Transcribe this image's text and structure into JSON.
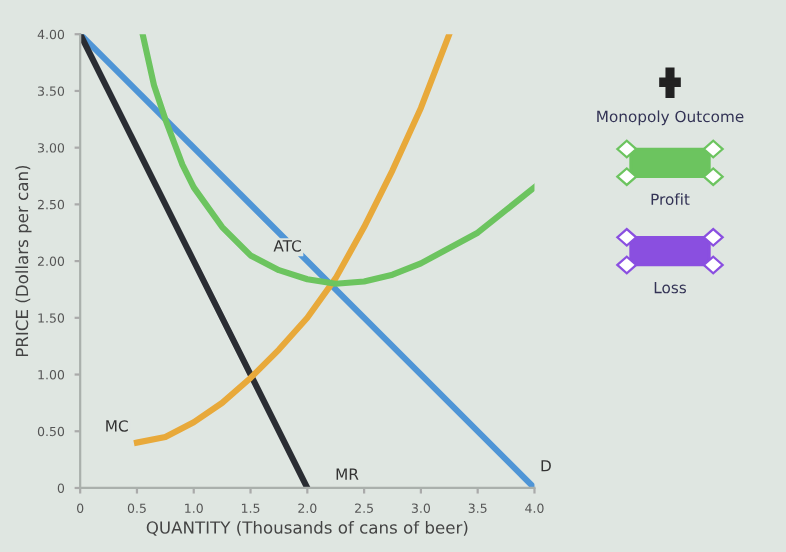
{
  "chart_data": {
    "type": "line",
    "xlabel": "QUANTITY (Thousands of cans of beer)",
    "ylabel": "PRICE (Dollars per can)",
    "xlim": [
      0,
      4
    ],
    "ylim": [
      0,
      4
    ],
    "xticks": [
      0,
      {
        "value": 0.5,
        "label": "0.5"
      },
      {
        "value": 1,
        "label": "1.0"
      },
      {
        "value": 1.5,
        "label": "1.5"
      },
      {
        "value": 2,
        "label": "2.0"
      },
      {
        "value": 2.5,
        "label": "2.5"
      },
      {
        "value": 3,
        "label": "3.0"
      },
      {
        "value": 3.5,
        "label": "3.5"
      },
      {
        "value": 4,
        "label": "4.0"
      }
    ],
    "yticks": [
      0,
      {
        "value": 0.5,
        "label": "0.50"
      },
      {
        "value": 1,
        "label": "1.00"
      },
      {
        "value": 1.5,
        "label": "1.50"
      },
      {
        "value": 2,
        "label": "2.00"
      },
      {
        "value": 2.5,
        "label": "2.50"
      },
      {
        "value": 3,
        "label": "3.00"
      },
      {
        "value": 3.5,
        "label": "3.50"
      },
      {
        "value": 4,
        "label": "4.00"
      }
    ],
    "grid": false,
    "legend": false,
    "marker": "none",
    "series": [
      {
        "color": "#4f95d6",
        "x": [
          0,
          4
        ],
        "values": [
          4,
          0
        ]
      },
      {
        "color": "#2a2d33",
        "x": [
          0,
          2
        ],
        "values": [
          4,
          0
        ]
      },
      {
        "color": "#e8a93a",
        "x": [
          0.5,
          0.75,
          1.0,
          1.25,
          1.5,
          1.75,
          2.0,
          2.25,
          2.5,
          2.75,
          3.0,
          3.25
        ],
        "values": [
          0.4,
          0.45,
          0.58,
          0.75,
          0.97,
          1.22,
          1.5,
          1.85,
          2.3,
          2.8,
          3.35,
          4.0
        ]
      },
      {
        "color": "#6cc45f",
        "x": [
          0.55,
          0.65,
          0.75,
          0.9,
          1.0,
          1.25,
          1.5,
          1.75,
          2.0,
          2.25,
          2.5,
          2.75,
          3.0,
          3.5,
          4.0
        ],
        "values": [
          4.0,
          3.55,
          3.25,
          2.85,
          2.65,
          2.3,
          2.05,
          1.92,
          1.84,
          1.8,
          1.82,
          1.88,
          1.98,
          2.25,
          2.65
        ]
      }
    ],
    "annotations": [
      {
        "text": "D",
        "x": 4,
        "y": 0
      },
      {
        "text": "MR",
        "x": 2,
        "y": 0
      },
      {
        "text": "MC",
        "x": 0.5,
        "y": 0.4
      },
      {
        "text": "ATC",
        "x": 2,
        "y": 1.84
      },
      "Monopoly Outcome",
      "Profit",
      "Loss"
    ]
  }
}
